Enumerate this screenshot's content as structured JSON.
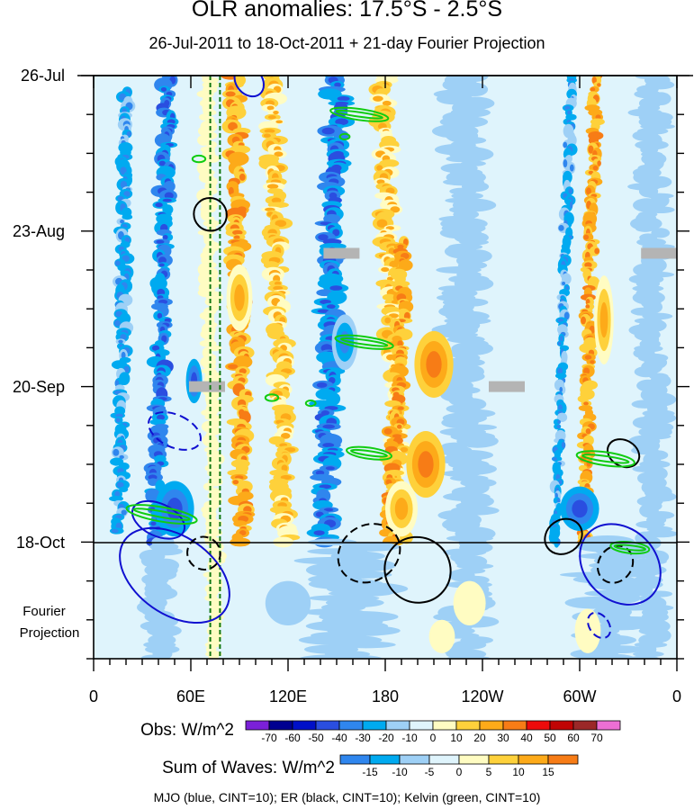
{
  "chart_data": {
    "type": "heatmap",
    "title": "OLR anomalies: 17.5°S - 2.5°S",
    "subtitle": "26-Jul-2011 to 18-Oct-2011 + 21-day Fourier Projection",
    "x_tick_labels": [
      "0",
      "60E",
      "120E",
      "180",
      "120W",
      "60W",
      "0"
    ],
    "x_tick_lons": [
      0,
      60,
      120,
      180,
      240,
      300,
      360
    ],
    "y_tick_labels": [
      "26-Jul",
      "23-Aug",
      "20-Sep",
      "18-Oct"
    ],
    "y_tick_days": [
      0,
      28,
      56,
      84
    ],
    "projection_label_line1": "Fourier",
    "projection_label_line2": "Projection",
    "xlim": [
      0,
      360
    ],
    "time_range_days": [
      0,
      105
    ],
    "obs_end_day": 84,
    "dashed_reference_lons": [
      72,
      78
    ],
    "obs_colorbar": {
      "label": "Obs: W/m^2",
      "levels": [
        "-70",
        "-60",
        "-50",
        "-40",
        "-30",
        "-20",
        "-10",
        "0",
        "10",
        "20",
        "30",
        "40",
        "50",
        "60",
        "70"
      ],
      "colors": [
        "#7b20d8",
        "#000090",
        "#0010c8",
        "#2a4ee0",
        "#2f86ee",
        "#00aaf0",
        "#9ed0f6",
        "#dff4fc",
        "#fffcc2",
        "#fed13b",
        "#fdaa19",
        "#f77c16",
        "#ee0b0b",
        "#c00404",
        "#9b2828",
        "#ec6fd4"
      ]
    },
    "waves_colorbar": {
      "label": "Sum of Waves: W/m^2",
      "levels": [
        "-15",
        "-10",
        "-5",
        "0",
        "5",
        "10",
        "15"
      ],
      "colors": [
        "#2f86ee",
        "#00aaf0",
        "#9ed0f6",
        "#dff4fc",
        "#fffcc2",
        "#fed13b",
        "#fdaa19",
        "#f77c16"
      ]
    },
    "bands": [
      {
        "lon": 20,
        "lon_width": 8,
        "level": -2,
        "day_start": 3,
        "day_end": 82,
        "drift": -4
      },
      {
        "lon": 46,
        "lon_width": 10,
        "level": -3,
        "day_start": 0,
        "day_end": 84,
        "drift": -8
      },
      {
        "lon": 70,
        "lon_width": 9,
        "level": 1,
        "day_start": 0,
        "day_end": 84,
        "drift": 4
      },
      {
        "lon": 88,
        "lon_width": 11,
        "level": 3,
        "day_start": 0,
        "day_end": 84,
        "drift": 4
      },
      {
        "lon": 110,
        "lon_width": 12,
        "level": 2,
        "day_start": 0,
        "day_end": 84,
        "drift": 8
      },
      {
        "lon": 150,
        "lon_width": 14,
        "level": -3,
        "day_start": 0,
        "day_end": 84,
        "drift": -8
      },
      {
        "lon": 178,
        "lon_width": 12,
        "level": 2,
        "day_start": 0,
        "day_end": 84,
        "drift": 12
      },
      {
        "lon": 192,
        "lon_width": 10,
        "level": 3,
        "day_start": 30,
        "day_end": 84,
        "drift": -10
      },
      {
        "lon": 230,
        "lon_width": 25,
        "level": -1,
        "day_start": 0,
        "day_end": 105,
        "drift": 0
      },
      {
        "lon": 295,
        "lon_width": 6,
        "level": -2,
        "day_start": 0,
        "day_end": 84,
        "drift": -10
      },
      {
        "lon": 310,
        "lon_width": 8,
        "level": 3,
        "day_start": 0,
        "day_end": 84,
        "drift": -8
      },
      {
        "lon": 345,
        "lon_width": 18,
        "level": -1,
        "day_start": 0,
        "day_end": 105,
        "drift": 0
      },
      {
        "lon": 40,
        "lon_width": 18,
        "level": -1,
        "day_start": 84,
        "day_end": 105,
        "drift": 0
      },
      {
        "lon": 75,
        "lon_width": 10,
        "level": 1,
        "day_start": 84,
        "day_end": 105,
        "drift": 0
      },
      {
        "lon": 160,
        "lon_width": 45,
        "level": -1,
        "day_start": 84,
        "day_end": 105,
        "drift": 0
      },
      {
        "lon": 320,
        "lon_width": 40,
        "level": -1,
        "day_start": 84,
        "day_end": 105,
        "drift": 0
      }
    ],
    "blobs": [
      {
        "lon": 210,
        "day": 52,
        "dlon": 12,
        "dday": 6,
        "level": 4
      },
      {
        "lon": 205,
        "day": 70,
        "dlon": 12,
        "dday": 6,
        "level": 4
      },
      {
        "lon": 190,
        "day": 78,
        "dlon": 10,
        "dday": 5,
        "level": 3
      },
      {
        "lon": 90,
        "day": 40,
        "dlon": 8,
        "dday": 6,
        "level": 3
      },
      {
        "lon": 50,
        "day": 78,
        "dlon": 12,
        "dday": 5,
        "level": -4
      },
      {
        "lon": 62,
        "day": 55,
        "dlon": 5,
        "dday": 4,
        "level": -4
      },
      {
        "lon": 155,
        "day": 48,
        "dlon": 8,
        "dday": 5,
        "level": -3
      },
      {
        "lon": 300,
        "day": 78,
        "dlon": 12,
        "dday": 4,
        "level": -4
      },
      {
        "lon": 315,
        "day": 44,
        "dlon": 6,
        "dday": 8,
        "level": 3
      },
      {
        "lon": 232,
        "day": 95,
        "dlon": 10,
        "dday": 4,
        "level": 1
      },
      {
        "lon": 215,
        "day": 101,
        "dlon": 8,
        "dday": 3,
        "level": 1
      },
      {
        "lon": 305,
        "day": 100,
        "dlon": 8,
        "dday": 4,
        "level": 1
      },
      {
        "lon": 120,
        "day": 95,
        "dlon": 14,
        "dday": 4,
        "level": -1
      }
    ],
    "gray_patches": [
      {
        "lon": 153,
        "day": 32
      },
      {
        "lon": 70,
        "day": 56
      },
      {
        "lon": 255,
        "day": 56
      },
      {
        "lon": 349,
        "day": 32
      }
    ],
    "wave_contours": [
      {
        "wave": "MJO",
        "color": "#1010d0",
        "dashed": false,
        "lon": 50,
        "day": 90,
        "rlon": 24,
        "rday": 11,
        "angle": -55
      },
      {
        "wave": "MJO",
        "color": "#1010d0",
        "dashed": false,
        "lon": 40,
        "day": 80,
        "rlon": 10,
        "rday": 5,
        "angle": -65
      },
      {
        "wave": "MJO",
        "color": "#1010d0",
        "dashed": false,
        "lon": 325,
        "day": 88,
        "rlon": 22,
        "rday": 8,
        "angle": -45
      },
      {
        "wave": "MJO",
        "color": "#1010d0",
        "dashed": true,
        "lon": 50,
        "day": 64,
        "rlon": 10,
        "rday": 5,
        "angle": -65
      },
      {
        "wave": "MJO",
        "color": "#1010d0",
        "dashed": false,
        "lon": 96,
        "day": 1,
        "rlon": 8,
        "rday": 3,
        "angle": -40
      },
      {
        "wave": "MJO",
        "color": "#1010d0",
        "dashed": true,
        "lon": 312,
        "day": 99,
        "rlon": 6,
        "rday": 2.5,
        "angle": -35
      },
      {
        "wave": "ER",
        "color": "#000000",
        "dashed": false,
        "lon": 72,
        "day": 25,
        "rlon": 10,
        "rday": 3,
        "angle": -45
      },
      {
        "wave": "ER",
        "color": "#000000",
        "dashed": false,
        "lon": 200,
        "day": 89,
        "rlon": 20,
        "rday": 6,
        "angle": -50
      },
      {
        "wave": "ER",
        "color": "#000000",
        "dashed": true,
        "lon": 170,
        "day": 86,
        "rlon": 20,
        "rday": 5,
        "angle": -35
      },
      {
        "wave": "ER",
        "color": "#000000",
        "dashed": true,
        "lon": 68,
        "day": 86,
        "rlon": 10,
        "rday": 3,
        "angle": -50
      },
      {
        "wave": "ER",
        "color": "#000000",
        "dashed": false,
        "lon": 290,
        "day": 83,
        "rlon": 12,
        "rday": 3,
        "angle": -35
      },
      {
        "wave": "ER",
        "color": "#000000",
        "dashed": true,
        "lon": 322,
        "day": 88,
        "rlon": 12,
        "rday": 3,
        "angle": -55
      },
      {
        "wave": "ER",
        "color": "#000000",
        "dashed": false,
        "lon": 327,
        "day": 68,
        "rlon": 8,
        "rday": 3,
        "angle": -60
      },
      {
        "wave": "Kelvin",
        "color": "#11cc11",
        "dashed": false,
        "lon": 164,
        "day": 7,
        "rlon": 18,
        "rday": 1,
        "angle": 8
      },
      {
        "wave": "Kelvin",
        "color": "#11cc11",
        "dashed": false,
        "lon": 167,
        "day": 48,
        "rlon": 18,
        "rday": 1,
        "angle": 8
      },
      {
        "wave": "Kelvin",
        "color": "#11cc11",
        "dashed": false,
        "lon": 170,
        "day": 68,
        "rlon": 14,
        "rday": 1,
        "angle": 8
      },
      {
        "wave": "Kelvin",
        "color": "#11cc11",
        "dashed": false,
        "lon": 42,
        "day": 79,
        "rlon": 22,
        "rday": 1.3,
        "angle": 10
      },
      {
        "wave": "Kelvin",
        "color": "#11cc11",
        "dashed": false,
        "lon": 316,
        "day": 69,
        "rlon": 18,
        "rday": 1.2,
        "angle": 8
      },
      {
        "wave": "Kelvin",
        "color": "#11cc11",
        "dashed": false,
        "lon": 331,
        "day": 85,
        "rlon": 12,
        "rday": 1,
        "angle": 6
      },
      {
        "wave": "Kelvin",
        "color": "#11cc11",
        "dashed": false,
        "lon": 65,
        "day": 15,
        "rlon": 4,
        "rday": 0.6,
        "angle": 0
      },
      {
        "wave": "Kelvin",
        "color": "#11cc11",
        "dashed": false,
        "lon": 110,
        "day": 58,
        "rlon": 4,
        "rday": 0.6,
        "angle": 0
      },
      {
        "wave": "Kelvin",
        "color": "#11cc11",
        "dashed": false,
        "lon": 134,
        "day": 59,
        "rlon": 3,
        "rday": 0.5,
        "angle": 0
      },
      {
        "wave": "Kelvin",
        "color": "#11cc11",
        "dashed": false,
        "lon": 155,
        "day": 11,
        "rlon": 3,
        "rday": 0.5,
        "angle": 0
      }
    ],
    "footnote": "MJO (blue, CINT=10); ER (black, CINT=10); Kelvin (green, CINT=10)"
  }
}
